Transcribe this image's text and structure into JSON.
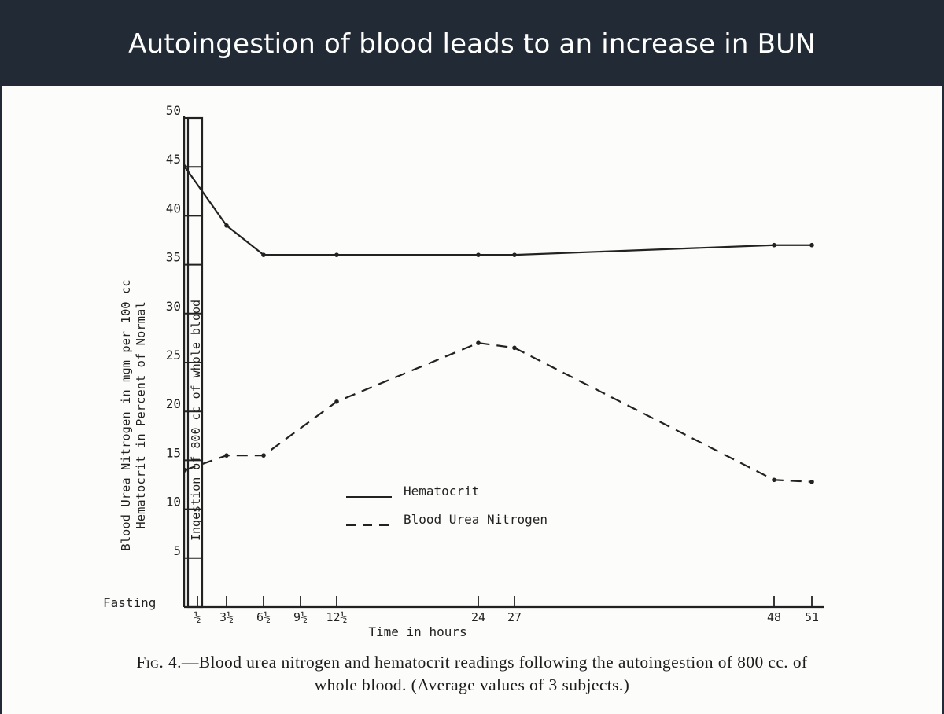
{
  "slide": {
    "title": "Autoingestion of blood leads to an increase in BUN",
    "colors": {
      "title_bar": "#222a35",
      "title_text": "#ffffff",
      "ink": "#222222"
    }
  },
  "figure": {
    "caption_prefix": "Fig. 4.",
    "caption_line1": "—Blood urea nitrogen and hematocrit readings following the autoingestion of 800 cc. of",
    "caption_line2": "whole blood.  (Average values of 3 subjects.)"
  },
  "chart_data": {
    "type": "line",
    "title": "",
    "xlabel": "Time in hours",
    "ylabel_line1": "Blood Urea Nitrogen in mgm per 100 cc",
    "ylabel_line2": "Hematocrit in Percent of Normal",
    "ylim": [
      0,
      50
    ],
    "y_ticks": [
      5,
      10,
      15,
      20,
      25,
      30,
      35,
      40,
      45,
      50
    ],
    "x_ticks": [
      {
        "value": 0.5,
        "label": "½"
      },
      {
        "value": 3.5,
        "label": "3½"
      },
      {
        "value": 6.5,
        "label": "6½"
      },
      {
        "value": 9.5,
        "label": "9½"
      },
      {
        "value": 12.5,
        "label": "12½"
      },
      {
        "value": 24,
        "label": "24"
      },
      {
        "value": 27,
        "label": "27"
      },
      {
        "value": 48,
        "label": "48"
      },
      {
        "value": 51,
        "label": "51"
      }
    ],
    "fasting_label": "Fasting",
    "ingestion_label": "Ingestion of 800 cc of whole blood",
    "legend": {
      "position": "center",
      "items": [
        {
          "name": "Hematocrit",
          "style": "solid"
        },
        {
          "name": "Blood Urea Nitrogen",
          "style": "dashed"
        }
      ]
    },
    "series": [
      {
        "name": "Hematocrit",
        "style": "solid",
        "x": [
          "fasting",
          3.5,
          6.5,
          12.5,
          24,
          27,
          48,
          51
        ],
        "y": [
          45,
          39,
          36,
          36,
          36,
          36,
          37,
          37
        ]
      },
      {
        "name": "Blood Urea Nitrogen",
        "style": "dashed",
        "x": [
          "fasting",
          3.5,
          6.5,
          12.5,
          24,
          27,
          48,
          51
        ],
        "y": [
          14,
          15.5,
          15.5,
          21,
          27,
          26.5,
          13,
          12.8
        ]
      }
    ]
  }
}
